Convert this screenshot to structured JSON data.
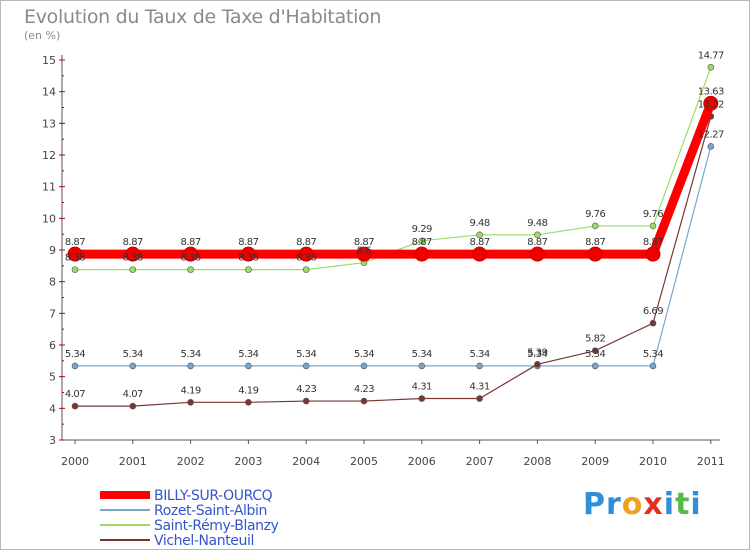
{
  "header": {
    "title": "Evolution du Taux de Taxe d'Habitation",
    "subtitle": "(en %)"
  },
  "logo": {
    "text": "Proxiti",
    "letters": [
      "P",
      "r",
      "o",
      "x",
      "i",
      "t",
      "i"
    ],
    "colors": [
      "#2f8fd8",
      "#2f8fd8",
      "#f0a020",
      "#e03020",
      "#2f8fd8",
      "#58b848",
      "#2f8fd8"
    ]
  },
  "chart_data": {
    "type": "line",
    "title": "Evolution du Taux de Taxe d'Habitation",
    "ylabel": "(en %)",
    "xlabel": "",
    "ylim": [
      3,
      15
    ],
    "yticks": [
      "3",
      "4",
      "5",
      "6",
      "7",
      "8",
      "9",
      "10",
      "11",
      "12",
      "13",
      "14",
      "15"
    ],
    "categories": [
      "2000",
      "2001",
      "2002",
      "2003",
      "2004",
      "2005",
      "2006",
      "2007",
      "2008",
      "2009",
      "2010",
      "2011"
    ],
    "grid": false,
    "legend": "bottom-left",
    "series": [
      {
        "name": "BILLY-SUR-OURCQ",
        "color": "#ff0000",
        "thick": true,
        "values": [
          8.87,
          8.87,
          8.87,
          8.87,
          8.87,
          8.87,
          8.87,
          8.87,
          8.87,
          8.87,
          8.87,
          13.63
        ],
        "labels": [
          "8.87",
          "8.87",
          "8.87",
          "8.87",
          "8.87",
          "8.87",
          "8.87",
          "8.87",
          "8.87",
          "8.87",
          "8.87",
          "13.63"
        ]
      },
      {
        "name": "Rozet-Saint-Albin",
        "color": "#7aa6cc",
        "thick": false,
        "values": [
          5.34,
          5.34,
          5.34,
          5.34,
          5.34,
          5.34,
          5.34,
          5.34,
          5.34,
          5.34,
          5.34,
          12.27
        ],
        "labels": [
          "5.34",
          "5.34",
          "5.34",
          "5.34",
          "5.34",
          "5.34",
          "5.34",
          "5.34",
          "5.34",
          "5.34",
          "5.34",
          "12.27"
        ]
      },
      {
        "name": "Saint-Rémy-Blanzy",
        "color": "#99dd66",
        "thick": false,
        "values": [
          8.38,
          8.38,
          8.38,
          8.38,
          8.38,
          8.6,
          9.29,
          9.48,
          9.48,
          9.76,
          9.76,
          14.77
        ],
        "labels": [
          "8.38",
          "8.38",
          "8.38",
          "8.38",
          "8.38",
          "8.6",
          "9.29",
          "9.48",
          "9.48",
          "9.76",
          "9.76",
          "14.77"
        ]
      },
      {
        "name": "Vichel-Nanteuil",
        "color": "#7a3535",
        "thick": false,
        "values": [
          4.07,
          4.07,
          4.19,
          4.19,
          4.23,
          4.23,
          4.31,
          4.31,
          5.39,
          5.82,
          6.69,
          13.22
        ],
        "labels": [
          "4.07",
          "4.07",
          "4.19",
          "4.19",
          "4.23",
          "4.23",
          "4.31",
          "4.31",
          "5.39",
          "5.82",
          "6.69",
          "13.22"
        ]
      }
    ]
  }
}
